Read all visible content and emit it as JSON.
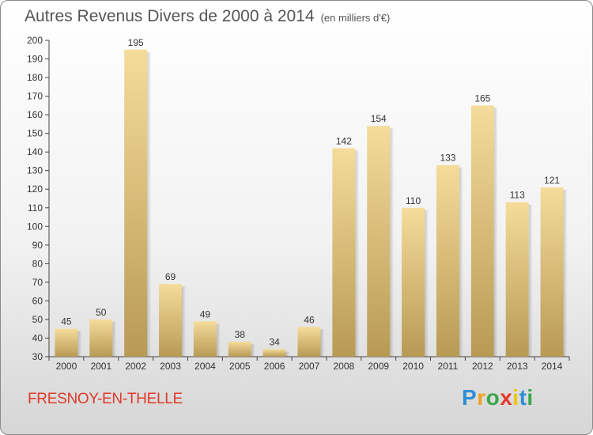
{
  "title": "Autres Revenus Divers de 2000 à 2014",
  "subtitle": "(en milliers d'€)",
  "town": "FRESNOY-EN-THELLE",
  "logo": {
    "p": "P",
    "r": "r",
    "o": "o",
    "x": "x",
    "i1": "i",
    "t": "t",
    "i2": "i"
  },
  "colors": {
    "bar_light": "#f5dc9a",
    "bar_dark": "#b89a55",
    "town": "#e03a2a"
  },
  "chart_data": {
    "type": "bar",
    "categories": [
      "2000",
      "2001",
      "2002",
      "2003",
      "2004",
      "2005",
      "2006",
      "2007",
      "2008",
      "2009",
      "2010",
      "2011",
      "2012",
      "2013",
      "2014"
    ],
    "values": [
      45,
      50,
      195,
      69,
      49,
      38,
      34,
      46,
      142,
      154,
      110,
      133,
      165,
      113,
      121
    ],
    "ylim": [
      30,
      200
    ],
    "yticks": [
      30,
      40,
      50,
      60,
      70,
      80,
      90,
      100,
      110,
      120,
      130,
      140,
      150,
      160,
      170,
      180,
      190,
      200
    ],
    "grid": false,
    "xlabel": "",
    "ylabel": ""
  }
}
